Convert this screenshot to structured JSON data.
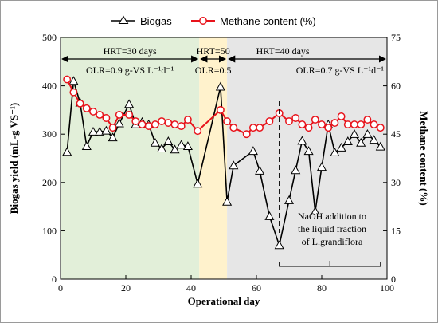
{
  "chart_data": {
    "type": "line",
    "xlabel": "Operational day",
    "ylabel_left": "Biogas yield (mL-g VS⁻¹)",
    "ylabel_right": "Methane content (%)",
    "xlim": [
      0,
      100
    ],
    "ylim_left": [
      0,
      500
    ],
    "ylim_right": [
      0,
      75
    ],
    "x_ticks": [
      0,
      20,
      40,
      60,
      80,
      100
    ],
    "y_ticks_left": [
      0,
      100,
      200,
      300,
      400,
      500
    ],
    "y_ticks_right": [
      0,
      15,
      30,
      45,
      60,
      75
    ],
    "legend_position": "top",
    "series": [
      {
        "name": "Biogas",
        "axis": "left",
        "color": "#000000",
        "marker": "triangle",
        "x": [
          2,
          4,
          6,
          8,
          10,
          12,
          14,
          16,
          18,
          21,
          23,
          25,
          27,
          29,
          31,
          33,
          35,
          37,
          39,
          42,
          49,
          51,
          53,
          59,
          61,
          64,
          67,
          70,
          72,
          74,
          76,
          78,
          80,
          82,
          84,
          86,
          88,
          90,
          92,
          94,
          96,
          98
        ],
        "values": [
          263,
          410,
          365,
          275,
          305,
          305,
          307,
          293,
          322,
          362,
          320,
          325,
          320,
          282,
          270,
          285,
          268,
          278,
          275,
          197,
          398,
          160,
          235,
          265,
          224,
          130,
          70,
          163,
          225,
          286,
          265,
          140,
          232,
          320,
          262,
          272,
          285,
          300,
          282,
          300,
          288,
          274
        ]
      },
      {
        "name": "Methane content (%)",
        "axis": "right",
        "color": "#e8131b",
        "marker": "circle",
        "x": [
          2,
          4,
          6,
          8,
          10,
          12,
          14,
          16,
          18,
          21,
          23,
          25,
          27,
          29,
          31,
          33,
          35,
          37,
          39,
          42,
          49,
          51,
          53,
          57,
          59,
          61,
          64,
          67,
          70,
          72,
          74,
          76,
          78,
          80,
          82,
          84,
          86,
          88,
          90,
          92,
          94,
          96,
          98
        ],
        "values": [
          62,
          58,
          54.5,
          53,
          52,
          51,
          50,
          47,
          51,
          51,
          49,
          48,
          47.5,
          48,
          49,
          48.5,
          48,
          47.5,
          49.5,
          46,
          52.5,
          49,
          47,
          45,
          47,
          47,
          49,
          51.5,
          49,
          50,
          48,
          47,
          49.5,
          48,
          47,
          48.5,
          50.5,
          48,
          48,
          48,
          49.5,
          48,
          47
        ]
      }
    ],
    "phases": [
      {
        "x_start": 0,
        "x_end": 42.5,
        "color": "#e2efd9",
        "hrt": "HRT=30 days",
        "olr": "OLR=0.9 g-VS L⁻¹d⁻¹"
      },
      {
        "x_start": 42.5,
        "x_end": 51,
        "color": "#fff2cc",
        "hrt": "HRT=50",
        "olr": "OLR=0.5"
      },
      {
        "x_start": 51,
        "x_end": 100,
        "color": "#e6e6e6",
        "hrt": "HRT=40 days",
        "olr": "OLR=0.7 g-VS L⁻¹d⁻¹"
      }
    ],
    "annotation": {
      "x": 67,
      "lines": [
        "NaOH addition to",
        "the liquid fraction",
        "of L.grandiflora"
      ]
    }
  }
}
